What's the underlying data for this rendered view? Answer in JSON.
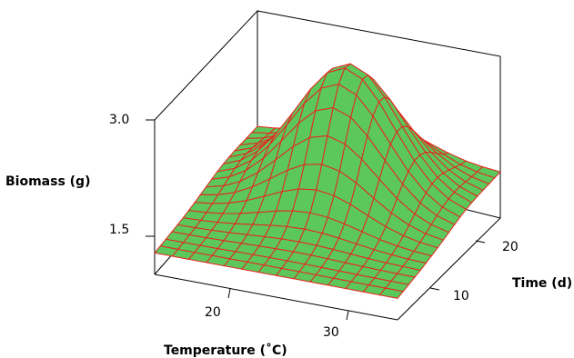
{
  "chart_data": {
    "type": "surface",
    "xlabel": "Temperature (˚C)",
    "ylabel": "Time (d)",
    "zlabel": "Biomass (g)",
    "x_ticks": [
      "20",
      "30"
    ],
    "y_ticks": [
      "10",
      "20"
    ],
    "z_ticks": [
      "1.5",
      "3.0"
    ],
    "xlim": [
      14,
      36
    ],
    "ylim": [
      4,
      26
    ],
    "zlim": [
      0.9,
      3.2
    ],
    "grid_x": [
      14,
      15.6,
      17.1,
      18.7,
      20.3,
      21.9,
      23.4,
      25,
      26.6,
      28.1,
      29.7,
      31.3,
      32.9,
      34.4,
      36
    ],
    "grid_y": [
      4,
      5.2,
      6.4,
      7.7,
      8.9,
      10.1,
      11.3,
      12.6,
      13.8,
      15,
      16.2,
      17.4,
      18.7,
      19.9,
      21.1,
      22.3,
      23.6,
      24.8,
      26
    ],
    "surface_model": "peak near (25 C, 19 d)",
    "colors": {
      "surface": "#5cc85c",
      "mesh": "#e8231e",
      "axes": "#000000"
    }
  }
}
